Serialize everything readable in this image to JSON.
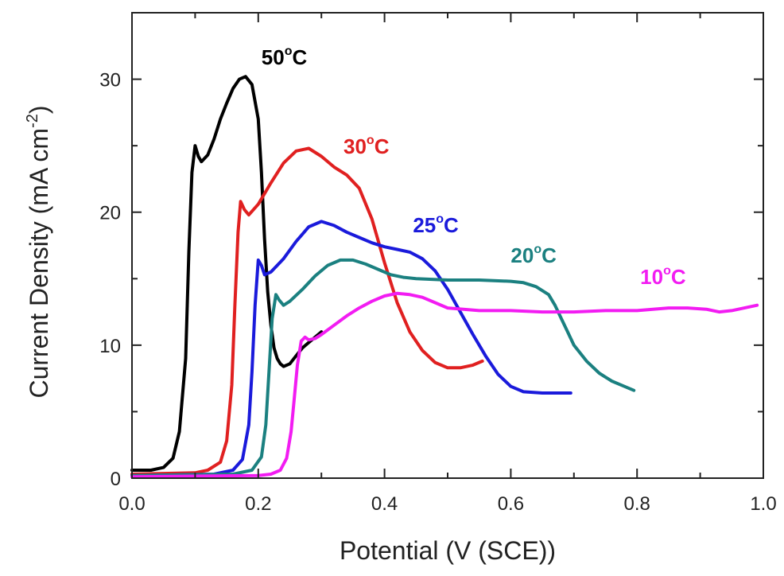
{
  "chart_data": {
    "type": "line",
    "xlabel": "Potential (V (SCE))",
    "ylabel": "Current Density (mA cm",
    "ylabel_exponent": "-2",
    "ylabel_close": ")",
    "xlim": [
      0.0,
      1.0
    ],
    "ylim": [
      0,
      35
    ],
    "xticks": [
      0.0,
      0.2,
      0.4,
      0.6,
      0.8,
      1.0
    ],
    "xtick_labels": [
      "0.0",
      "0.2",
      "0.4",
      "0.6",
      "0.8",
      "1.0"
    ],
    "yticks": [
      0,
      10,
      20,
      30
    ],
    "ytick_labels": [
      "0",
      "10",
      "20",
      "30"
    ],
    "grid": false,
    "series": [
      {
        "name": "50°C",
        "label_number": "50",
        "label_unit": "C",
        "color": "#000000",
        "label_at": [
          0.205,
          31.1
        ],
        "points": [
          [
            0.0,
            0.6
          ],
          [
            0.03,
            0.6
          ],
          [
            0.05,
            0.8
          ],
          [
            0.065,
            1.5
          ],
          [
            0.075,
            3.5
          ],
          [
            0.085,
            9
          ],
          [
            0.09,
            17
          ],
          [
            0.095,
            23
          ],
          [
            0.1,
            25
          ],
          [
            0.105,
            24.2
          ],
          [
            0.11,
            23.8
          ],
          [
            0.12,
            24.3
          ],
          [
            0.13,
            25.5
          ],
          [
            0.14,
            27
          ],
          [
            0.15,
            28.2
          ],
          [
            0.16,
            29.3
          ],
          [
            0.17,
            30
          ],
          [
            0.18,
            30.2
          ],
          [
            0.19,
            29.6
          ],
          [
            0.2,
            27
          ],
          [
            0.205,
            23
          ],
          [
            0.21,
            18
          ],
          [
            0.215,
            14
          ],
          [
            0.22,
            11.5
          ],
          [
            0.225,
            9.8
          ],
          [
            0.23,
            9
          ],
          [
            0.235,
            8.6
          ],
          [
            0.24,
            8.4
          ],
          [
            0.25,
            8.6
          ],
          [
            0.26,
            9.2
          ],
          [
            0.27,
            9.8
          ],
          [
            0.28,
            10.2
          ],
          [
            0.29,
            10.6
          ],
          [
            0.3,
            11
          ]
        ]
      },
      {
        "name": "30°C",
        "label_number": "30",
        "label_unit": "C",
        "color": "#e02020",
        "label_at": [
          0.335,
          24.4
        ],
        "points": [
          [
            0.0,
            0.3
          ],
          [
            0.1,
            0.4
          ],
          [
            0.12,
            0.6
          ],
          [
            0.14,
            1.2
          ],
          [
            0.15,
            2.8
          ],
          [
            0.158,
            7
          ],
          [
            0.163,
            13
          ],
          [
            0.168,
            18.5
          ],
          [
            0.172,
            20.8
          ],
          [
            0.178,
            20.2
          ],
          [
            0.185,
            19.8
          ],
          [
            0.2,
            20.6
          ],
          [
            0.22,
            22.2
          ],
          [
            0.24,
            23.7
          ],
          [
            0.26,
            24.6
          ],
          [
            0.28,
            24.8
          ],
          [
            0.3,
            24.2
          ],
          [
            0.32,
            23.4
          ],
          [
            0.34,
            22.8
          ],
          [
            0.36,
            21.8
          ],
          [
            0.38,
            19.5
          ],
          [
            0.4,
            16.2
          ],
          [
            0.42,
            13.2
          ],
          [
            0.44,
            11
          ],
          [
            0.46,
            9.6
          ],
          [
            0.48,
            8.7
          ],
          [
            0.5,
            8.3
          ],
          [
            0.52,
            8.3
          ],
          [
            0.54,
            8.5
          ],
          [
            0.555,
            8.8
          ]
        ]
      },
      {
        "name": "25°C",
        "label_number": "25",
        "label_unit": "C",
        "color": "#1a1adb",
        "label_at": [
          0.445,
          18.5
        ],
        "points": [
          [
            0.0,
            0.2
          ],
          [
            0.13,
            0.3
          ],
          [
            0.16,
            0.6
          ],
          [
            0.175,
            1.4
          ],
          [
            0.185,
            4
          ],
          [
            0.19,
            8
          ],
          [
            0.195,
            13
          ],
          [
            0.2,
            16.4
          ],
          [
            0.205,
            16
          ],
          [
            0.21,
            15.3
          ],
          [
            0.22,
            15.5
          ],
          [
            0.24,
            16.5
          ],
          [
            0.26,
            17.8
          ],
          [
            0.28,
            18.9
          ],
          [
            0.3,
            19.3
          ],
          [
            0.32,
            19
          ],
          [
            0.34,
            18.5
          ],
          [
            0.36,
            18.1
          ],
          [
            0.38,
            17.7
          ],
          [
            0.4,
            17.4
          ],
          [
            0.42,
            17.2
          ],
          [
            0.44,
            17
          ],
          [
            0.46,
            16.5
          ],
          [
            0.48,
            15.6
          ],
          [
            0.5,
            14.2
          ],
          [
            0.52,
            12.5
          ],
          [
            0.54,
            10.8
          ],
          [
            0.56,
            9.2
          ],
          [
            0.58,
            7.8
          ],
          [
            0.6,
            6.9
          ],
          [
            0.62,
            6.5
          ],
          [
            0.65,
            6.4
          ],
          [
            0.67,
            6.4
          ],
          [
            0.695,
            6.4
          ]
        ]
      },
      {
        "name": "20°C",
        "label_number": "20",
        "label_unit": "C",
        "color": "#1b8080",
        "label_at": [
          0.6,
          16.2
        ],
        "points": [
          [
            0.0,
            0.2
          ],
          [
            0.16,
            0.3
          ],
          [
            0.19,
            0.6
          ],
          [
            0.205,
            1.6
          ],
          [
            0.212,
            4
          ],
          [
            0.217,
            8
          ],
          [
            0.222,
            12
          ],
          [
            0.228,
            13.8
          ],
          [
            0.233,
            13.4
          ],
          [
            0.24,
            13
          ],
          [
            0.25,
            13.3
          ],
          [
            0.27,
            14.2
          ],
          [
            0.29,
            15.2
          ],
          [
            0.31,
            16
          ],
          [
            0.33,
            16.4
          ],
          [
            0.35,
            16.4
          ],
          [
            0.37,
            16.1
          ],
          [
            0.39,
            15.7
          ],
          [
            0.41,
            15.3
          ],
          [
            0.43,
            15.1
          ],
          [
            0.45,
            15
          ],
          [
            0.5,
            14.9
          ],
          [
            0.55,
            14.9
          ],
          [
            0.6,
            14.8
          ],
          [
            0.62,
            14.7
          ],
          [
            0.64,
            14.4
          ],
          [
            0.66,
            13.8
          ],
          [
            0.67,
            13
          ],
          [
            0.68,
            12
          ],
          [
            0.69,
            11
          ],
          [
            0.7,
            10
          ],
          [
            0.72,
            8.8
          ],
          [
            0.74,
            7.9
          ],
          [
            0.76,
            7.3
          ],
          [
            0.78,
            6.9
          ],
          [
            0.795,
            6.6
          ]
        ]
      },
      {
        "name": "10°C",
        "label_number": "10",
        "label_unit": "C",
        "color": "#f21cf2",
        "label_at": [
          0.805,
          14.6
        ],
        "points": [
          [
            0.0,
            0.1
          ],
          [
            0.2,
            0.2
          ],
          [
            0.22,
            0.3
          ],
          [
            0.235,
            0.6
          ],
          [
            0.245,
            1.5
          ],
          [
            0.252,
            3.5
          ],
          [
            0.257,
            6
          ],
          [
            0.262,
            8.5
          ],
          [
            0.268,
            10.3
          ],
          [
            0.274,
            10.6
          ],
          [
            0.28,
            10.4
          ],
          [
            0.29,
            10.5
          ],
          [
            0.3,
            10.8
          ],
          [
            0.32,
            11.5
          ],
          [
            0.34,
            12.2
          ],
          [
            0.36,
            12.8
          ],
          [
            0.38,
            13.3
          ],
          [
            0.4,
            13.7
          ],
          [
            0.42,
            13.9
          ],
          [
            0.44,
            13.8
          ],
          [
            0.46,
            13.6
          ],
          [
            0.48,
            13.2
          ],
          [
            0.5,
            12.8
          ],
          [
            0.55,
            12.6
          ],
          [
            0.6,
            12.6
          ],
          [
            0.65,
            12.5
          ],
          [
            0.7,
            12.5
          ],
          [
            0.75,
            12.6
          ],
          [
            0.8,
            12.6
          ],
          [
            0.85,
            12.8
          ],
          [
            0.88,
            12.8
          ],
          [
            0.91,
            12.7
          ],
          [
            0.93,
            12.5
          ],
          [
            0.95,
            12.6
          ],
          [
            0.97,
            12.8
          ],
          [
            0.99,
            13
          ]
        ]
      }
    ]
  }
}
